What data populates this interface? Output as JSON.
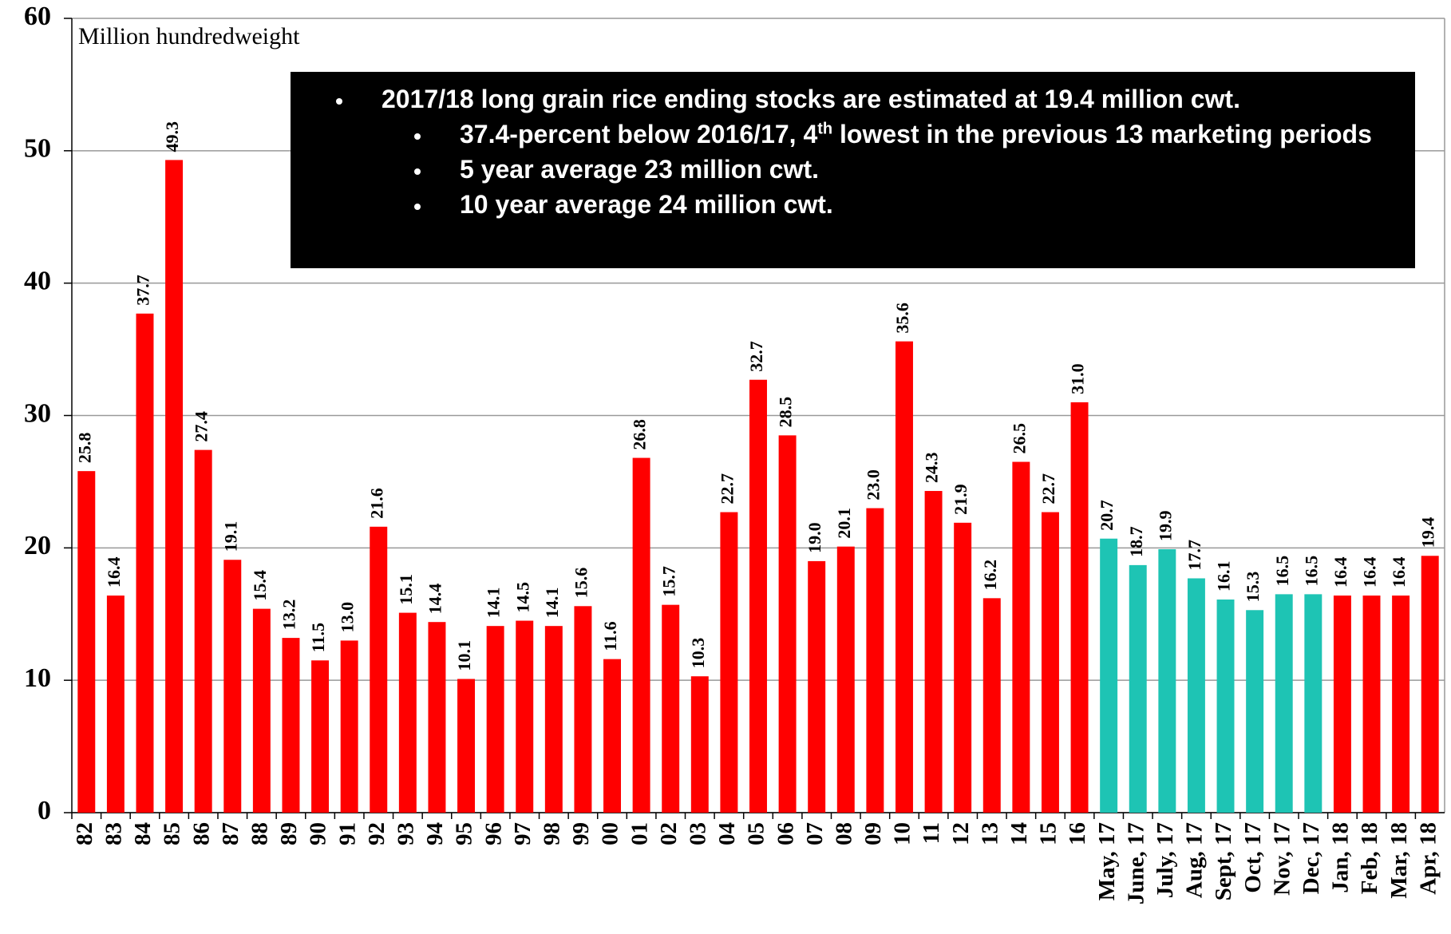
{
  "chart_data": {
    "type": "bar",
    "y_label": "Million hundredweight",
    "categories": [
      "82",
      "83",
      "84",
      "85",
      "86",
      "87",
      "88",
      "89",
      "90",
      "91",
      "92",
      "93",
      "94",
      "95",
      "96",
      "97",
      "98",
      "99",
      "00",
      "01",
      "02",
      "03",
      "04",
      "05",
      "06",
      "07",
      "08",
      "09",
      "10",
      "11",
      "12",
      "13",
      "14",
      "15",
      "16",
      "May, 17",
      "June, 17",
      "July, 17",
      "Aug, 17",
      "Sept, 17",
      "Oct, 17",
      "Nov, 17",
      "Dec, 17",
      "Jan, 18",
      "Feb, 18",
      "Mar, 18",
      "Apr, 18"
    ],
    "values": [
      25.8,
      16.4,
      37.7,
      49.3,
      27.4,
      19.1,
      15.4,
      13.2,
      11.5,
      13.0,
      21.6,
      15.1,
      14.4,
      10.1,
      14.1,
      14.5,
      14.1,
      15.6,
      11.6,
      26.8,
      15.7,
      10.3,
      22.7,
      32.7,
      28.5,
      19.0,
      20.1,
      23.0,
      35.6,
      24.3,
      21.9,
      16.2,
      26.5,
      22.7,
      31.0,
      20.7,
      18.7,
      19.9,
      17.7,
      16.1,
      15.3,
      16.5,
      16.5,
      16.4,
      16.4,
      16.4,
      19.4
    ],
    "value_labels": [
      "25.8",
      "16.4",
      "37.7",
      "49.3",
      "27.4",
      "19.1",
      "15.4",
      "13.2",
      "11.5",
      "13.0",
      "21.6",
      "15.1",
      "14.4",
      "10.1",
      "14.1",
      "14.5",
      "14.1",
      "15.6",
      "11.6",
      "26.8",
      "15.7",
      "10.3",
      "22.7",
      "32.7",
      "28.5",
      "19.0",
      "20.1",
      "23.0",
      "35.6",
      "24.3",
      "21.9",
      "16.2",
      "26.5",
      "22.7",
      "31.0",
      "20.7",
      "18.7",
      "19.9",
      "17.7",
      "16.1",
      "15.3",
      "16.5",
      "16.5",
      "16.4",
      "16.4",
      "16.4",
      "19.4"
    ],
    "colors": [
      "#ff0000",
      "#ff0000",
      "#ff0000",
      "#ff0000",
      "#ff0000",
      "#ff0000",
      "#ff0000",
      "#ff0000",
      "#ff0000",
      "#ff0000",
      "#ff0000",
      "#ff0000",
      "#ff0000",
      "#ff0000",
      "#ff0000",
      "#ff0000",
      "#ff0000",
      "#ff0000",
      "#ff0000",
      "#ff0000",
      "#ff0000",
      "#ff0000",
      "#ff0000",
      "#ff0000",
      "#ff0000",
      "#ff0000",
      "#ff0000",
      "#ff0000",
      "#ff0000",
      "#ff0000",
      "#ff0000",
      "#ff0000",
      "#ff0000",
      "#ff0000",
      "#ff0000",
      "#1ec4b4",
      "#1ec4b4",
      "#1ec4b4",
      "#1ec4b4",
      "#1ec4b4",
      "#1ec4b4",
      "#1ec4b4",
      "#1ec4b4",
      "#ff0000",
      "#ff0000",
      "#ff0000",
      "#ff0000"
    ],
    "ylim": [
      0,
      60
    ],
    "yticks": [
      0,
      10,
      20,
      30,
      40,
      50,
      60
    ],
    "grid": true,
    "annotation": [
      {
        "level": 1,
        "parts": [
          {
            "text": "2017/18 long grain rice ending stocks are estimated at 19.4 million cwt."
          }
        ]
      },
      {
        "level": 2,
        "parts": [
          {
            "text": "37.4-percent below 2016/17, 4"
          },
          {
            "text": "th",
            "sup": true
          },
          {
            "text": " lowest in the previous 13 marketing periods"
          }
        ]
      },
      {
        "level": 2,
        "parts": [
          {
            "text": "5 year average 23 million cwt."
          }
        ]
      },
      {
        "level": 2,
        "parts": [
          {
            "text": "10 year average 24 million cwt."
          }
        ]
      }
    ]
  }
}
